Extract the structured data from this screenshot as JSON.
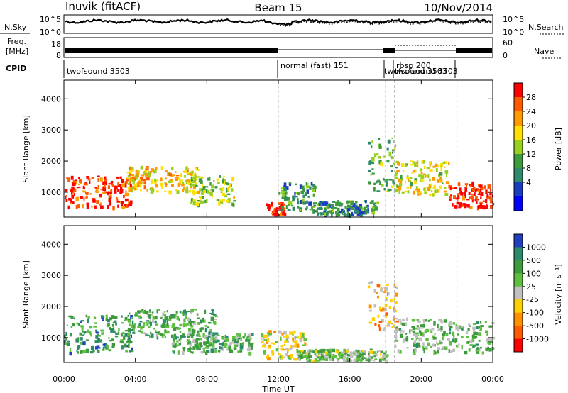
{
  "header": {
    "station": "Inuvik (fitACF)",
    "beam": "Beam 15",
    "date": "10/Nov/2014"
  },
  "panels": {
    "nsky_label": "N.Sky",
    "nsky_ticks": [
      "10^5",
      "10^0"
    ],
    "nsearch_label": "N.Search",
    "freq_label": "Freq.",
    "freq_unit": "[MHz]",
    "freq_ticks": [
      "18",
      "8"
    ],
    "nave_label": "Nave",
    "nave_ticks": [
      "60",
      "0"
    ],
    "cpid_label": "CPID",
    "cpid_segments": [
      {
        "name": "twofsound 3503",
        "start_h": 0.0,
        "end_h": 12.0
      },
      {
        "name": "normal (fast) 151",
        "start_h": 12.0,
        "end_h": 18.0
      },
      {
        "name": "twofsound 3503",
        "start_h": 18.0,
        "end_h": 18.5
      },
      {
        "name": "rbsp 200",
        "start_h": 18.5,
        "end_h": 22.0
      },
      {
        "name": "twofsound 3503",
        "start_h": 22.0,
        "end_h": 24.0
      }
    ]
  },
  "colorbars": {
    "power": {
      "label": "Power [dB]",
      "ticks": [
        "28",
        "24",
        "20",
        "16",
        "12",
        "8",
        "4"
      ],
      "colors": [
        "#ff0000",
        "#ff5a00",
        "#ff9a00",
        "#ffe000",
        "#98d020",
        "#3d9a3d",
        "#2e8a6a",
        "#1a3cbf",
        "#0000ff"
      ]
    },
    "velocity": {
      "label": "Velocity [m s⁻¹]",
      "ticks": [
        "1000",
        "500",
        "100",
        "25",
        "-25",
        "-100",
        "-500",
        "-1000"
      ],
      "colors": [
        "#1f3fbf",
        "#2a8a6a",
        "#3d9a3d",
        "#5fc040",
        "#c0c0c0",
        "#ffd000",
        "#ff9000",
        "#ff5a00",
        "#ff0000"
      ]
    }
  },
  "xaxis": {
    "label": "Time UT",
    "ticks": [
      "00:00",
      "04:00",
      "08:00",
      "12:00",
      "16:00",
      "20:00",
      "00:00"
    ]
  },
  "chart_data": [
    {
      "type": "heatmap",
      "title": "Power",
      "ylabel": "Slant Range [km]",
      "yticks": [
        1000,
        2000,
        3000,
        4000
      ],
      "ylim": [
        200,
        4600
      ],
      "xlim_hours": [
        0,
        24
      ],
      "zlabel": "Power [dB]",
      "zlim": [
        0,
        30
      ],
      "regions": [
        {
          "t0": 0.0,
          "t1": 3.8,
          "r0": 500,
          "r1": 1500,
          "level": 0.9
        },
        {
          "t0": 3.5,
          "t1": 7.5,
          "r0": 1000,
          "r1": 1800,
          "level": 0.65
        },
        {
          "t0": 7.0,
          "t1": 9.5,
          "r0": 600,
          "r1": 1500,
          "level": 0.5
        },
        {
          "t0": 11.3,
          "t1": 12.3,
          "r0": 250,
          "r1": 650,
          "level": 0.92
        },
        {
          "t0": 12.0,
          "t1": 14.0,
          "r0": 400,
          "r1": 1300,
          "level": 0.35
        },
        {
          "t0": 14.0,
          "t1": 17.5,
          "r0": 250,
          "r1": 700,
          "level": 0.3
        },
        {
          "t0": 17.0,
          "t1": 18.6,
          "r0": 1000,
          "r1": 2800,
          "level": 0.4
        },
        {
          "t0": 18.5,
          "t1": 21.5,
          "r0": 900,
          "r1": 2000,
          "level": 0.6
        },
        {
          "t0": 21.5,
          "t1": 24.0,
          "r0": 500,
          "r1": 1300,
          "level": 0.95
        }
      ]
    },
    {
      "type": "heatmap",
      "title": "Velocity",
      "ylabel": "Slant Range [km]",
      "yticks": [
        1000,
        2000,
        3000,
        4000
      ],
      "ylim": [
        200,
        4600
      ],
      "xlim_hours": [
        0,
        24
      ],
      "zlabel": "Velocity [m s⁻¹]",
      "zlim": [
        -1000,
        1000
      ],
      "regions": [
        {
          "t0": 0.0,
          "t1": 3.8,
          "r0": 500,
          "r1": 1700,
          "level": 0.75
        },
        {
          "t0": 3.5,
          "t1": 8.5,
          "r0": 1000,
          "r1": 1900,
          "level": 0.7
        },
        {
          "t0": 6.0,
          "t1": 10.5,
          "r0": 500,
          "r1": 1100,
          "level": 0.65
        },
        {
          "t0": 11.0,
          "t1": 13.5,
          "r0": 300,
          "r1": 1200,
          "level": 0.45
        },
        {
          "t0": 13.0,
          "t1": 18.0,
          "r0": 250,
          "r1": 600,
          "level": 0.6
        },
        {
          "t0": 17.0,
          "t1": 18.6,
          "r0": 1200,
          "r1": 2800,
          "level": 0.35
        },
        {
          "t0": 18.5,
          "t1": 24.0,
          "r0": 500,
          "r1": 1600,
          "level": 0.62
        }
      ]
    }
  ]
}
